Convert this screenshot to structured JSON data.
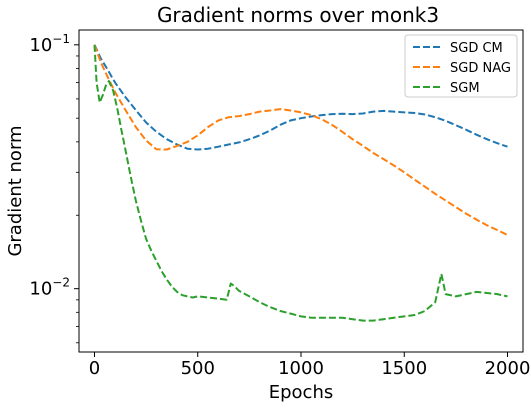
{
  "chart_data": {
    "type": "line",
    "title": "Gradient norms over monk3",
    "xlabel": "Epochs",
    "ylabel": "Gradient norm",
    "yscale": "log",
    "xlim": [
      -75,
      2075
    ],
    "ylim": [
      0.0055,
      0.115
    ],
    "x_ticks": [
      0,
      500,
      1000,
      1500,
      2000
    ],
    "x_tick_labels": [
      "0",
      "500",
      "1000",
      "1500",
      "2000"
    ],
    "y_ticks": [
      0.01,
      0.1
    ],
    "y_tick_labels": [
      {
        "base": "10",
        "exp": "−2"
      },
      {
        "base": "10",
        "exp": "−1"
      }
    ],
    "legend_position": "top-right",
    "line_style": "dashed",
    "series": [
      {
        "name": "SGD CM",
        "color": "#1f77b4",
        "x": [
          0,
          30,
          60,
          100,
          150,
          200,
          250,
          300,
          350,
          400,
          450,
          500,
          550,
          600,
          650,
          700,
          750,
          800,
          850,
          900,
          950,
          1000,
          1050,
          1100,
          1150,
          1200,
          1250,
          1300,
          1350,
          1400,
          1450,
          1500,
          1550,
          1600,
          1650,
          1700,
          1750,
          1800,
          1850,
          1900,
          1950,
          2000
        ],
        "y": [
          0.1,
          0.088,
          0.08,
          0.07,
          0.061,
          0.054,
          0.048,
          0.044,
          0.041,
          0.039,
          0.0375,
          0.0372,
          0.0375,
          0.0382,
          0.039,
          0.0398,
          0.041,
          0.0425,
          0.0445,
          0.047,
          0.049,
          0.05,
          0.0508,
          0.0515,
          0.052,
          0.0522,
          0.052,
          0.0523,
          0.0532,
          0.0536,
          0.0532,
          0.0528,
          0.0525,
          0.0518,
          0.0505,
          0.0488,
          0.0468,
          0.0448,
          0.0428,
          0.041,
          0.0395,
          0.0382
        ]
      },
      {
        "name": "SGD NAG",
        "color": "#ff7f0e",
        "x": [
          0,
          30,
          60,
          100,
          150,
          200,
          250,
          300,
          350,
          400,
          450,
          500,
          550,
          600,
          650,
          700,
          750,
          800,
          850,
          900,
          950,
          1000,
          1050,
          1100,
          1150,
          1200,
          1250,
          1300,
          1350,
          1400,
          1450,
          1500,
          1550,
          1600,
          1650,
          1700,
          1750,
          1800,
          1850,
          1900,
          1950,
          2000
        ],
        "y": [
          0.1,
          0.085,
          0.075,
          0.064,
          0.054,
          0.046,
          0.0405,
          0.0373,
          0.0372,
          0.0385,
          0.04,
          0.0425,
          0.046,
          0.049,
          0.0505,
          0.051,
          0.052,
          0.0532,
          0.0538,
          0.0545,
          0.0538,
          0.0528,
          0.0515,
          0.0495,
          0.047,
          0.044,
          0.041,
          0.0385,
          0.036,
          0.034,
          0.032,
          0.03,
          0.028,
          0.0262,
          0.0245,
          0.023,
          0.0216,
          0.0203,
          0.0192,
          0.0182,
          0.0174,
          0.0166
        ]
      },
      {
        "name": "SGM",
        "color": "#2ca02c",
        "x": [
          0,
          10,
          25,
          40,
          55,
          70,
          90,
          110,
          130,
          150,
          175,
          200,
          225,
          250,
          275,
          300,
          325,
          350,
          375,
          400,
          425,
          450,
          475,
          500,
          550,
          600,
          640,
          660,
          680,
          700,
          750,
          800,
          850,
          900,
          950,
          1000,
          1050,
          1100,
          1150,
          1200,
          1250,
          1300,
          1350,
          1400,
          1450,
          1500,
          1550,
          1600,
          1650,
          1680,
          1700,
          1750,
          1800,
          1850,
          1900,
          1950,
          2000
        ],
        "y": [
          0.1,
          0.07,
          0.058,
          0.062,
          0.068,
          0.071,
          0.065,
          0.055,
          0.045,
          0.037,
          0.029,
          0.023,
          0.019,
          0.016,
          0.0143,
          0.013,
          0.0118,
          0.0109,
          0.0102,
          0.0097,
          0.0094,
          0.0093,
          0.0092,
          0.0093,
          0.0092,
          0.0091,
          0.009,
          0.0105,
          0.0102,
          0.0098,
          0.0093,
          0.0088,
          0.0084,
          0.0081,
          0.0079,
          0.0077,
          0.0076,
          0.0076,
          0.0076,
          0.0076,
          0.0075,
          0.0074,
          0.0074,
          0.0075,
          0.0076,
          0.0077,
          0.0078,
          0.0081,
          0.0088,
          0.0115,
          0.0095,
          0.0093,
          0.0095,
          0.0097,
          0.0096,
          0.0095,
          0.0093
        ]
      }
    ]
  }
}
